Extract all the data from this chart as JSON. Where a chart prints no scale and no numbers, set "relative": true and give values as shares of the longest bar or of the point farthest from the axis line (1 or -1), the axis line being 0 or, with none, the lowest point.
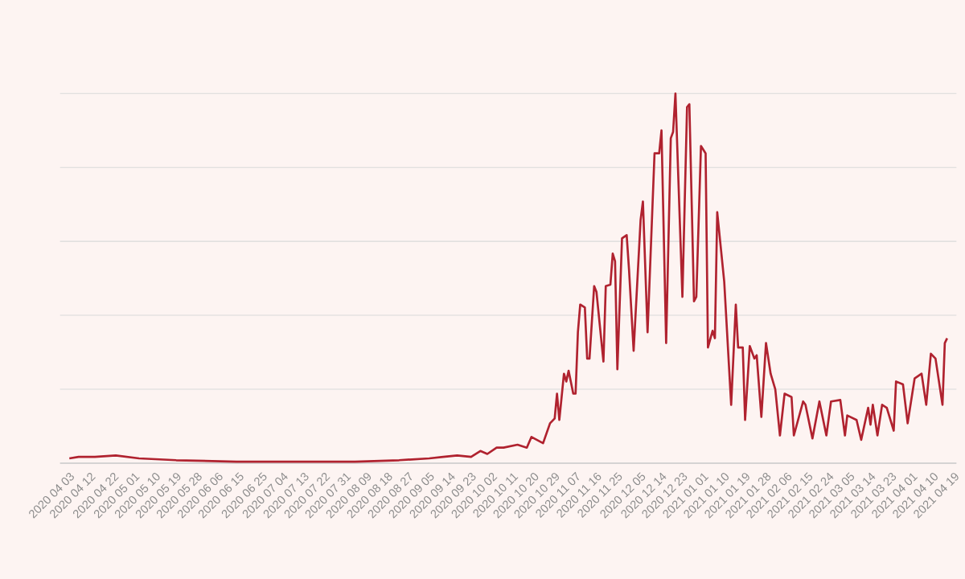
{
  "chart_data": {
    "type": "line",
    "relative": true,
    "grid": "y",
    "color": "#b0222f",
    "x": [
      "2020-04-03",
      "2020-04-07",
      "2020-04-14",
      "2020-04-23",
      "2020-05-03",
      "2020-05-19",
      "2020-06-14",
      "2020-07-09",
      "2020-08-04",
      "2020-08-23",
      "2020-09-05",
      "2020-09-11",
      "2020-09-17",
      "2020-09-23",
      "2020-09-27",
      "2020-09-30",
      "2020-10-04",
      "2020-10-07",
      "2020-10-13",
      "2020-10-17",
      "2020-10-19",
      "2020-10-24",
      "2020-10-27",
      "2020-10-29",
      "2020-10-30",
      "2020-10-31",
      "2020-11-02",
      "2020-11-03",
      "2020-11-04",
      "2020-11-06",
      "2020-11-07",
      "2020-11-08",
      "2020-11-09",
      "2020-11-11",
      "2020-11-12",
      "2020-11-13",
      "2020-11-15",
      "2020-11-16",
      "2020-11-19",
      "2020-11-20",
      "2020-11-22",
      "2020-11-23",
      "2020-11-24",
      "2020-11-25",
      "2020-11-27",
      "2020-11-29",
      "2020-11-30",
      "2020-12-02",
      "2020-12-05",
      "2020-12-06",
      "2020-12-08",
      "2020-12-11",
      "2020-12-13",
      "2020-12-14",
      "2020-12-16",
      "2020-12-18",
      "2020-12-19",
      "2020-12-20",
      "2020-12-23",
      "2020-12-25",
      "2020-12-26",
      "2020-12-28",
      "2020-12-29",
      "2020-12-31",
      "2021-01-02",
      "2021-01-03",
      "2021-01-05",
      "2021-01-06",
      "2021-01-07",
      "2021-01-10",
      "2021-01-13",
      "2021-01-15",
      "2021-01-16",
      "2021-01-18",
      "2021-01-19",
      "2021-01-21",
      "2021-01-23",
      "2021-01-24",
      "2021-01-26",
      "2021-01-28",
      "2021-01-30",
      "2021-02-01",
      "2021-02-03",
      "2021-02-05",
      "2021-02-08",
      "2021-02-09",
      "2021-02-13",
      "2021-02-14",
      "2021-02-17",
      "2021-02-20",
      "2021-02-23",
      "2021-02-25",
      "2021-03-01",
      "2021-03-03",
      "2021-03-04",
      "2021-03-08",
      "2021-03-10",
      "2021-03-13",
      "2021-03-14",
      "2021-03-15",
      "2021-03-17",
      "2021-03-19",
      "2021-03-21",
      "2021-03-24",
      "2021-03-25",
      "2021-03-28",
      "2021-03-30",
      "2021-04-02",
      "2021-04-05",
      "2021-04-07",
      "2021-04-09",
      "2021-04-11",
      "2021-04-14",
      "2021-04-15",
      "2021-04-16"
    ],
    "values": [
      0.013,
      0.017,
      0.017,
      0.021,
      0.013,
      0.008,
      0.004,
      0.004,
      0.004,
      0.008,
      0.013,
      0.017,
      0.021,
      0.017,
      0.033,
      0.025,
      0.042,
      0.042,
      0.05,
      0.042,
      0.071,
      0.054,
      0.108,
      0.121,
      0.188,
      0.117,
      0.242,
      0.221,
      0.25,
      0.188,
      0.188,
      0.354,
      0.429,
      0.421,
      0.283,
      0.283,
      0.479,
      0.463,
      0.275,
      0.479,
      0.483,
      0.567,
      0.546,
      0.254,
      0.608,
      0.617,
      0.525,
      0.304,
      0.658,
      0.708,
      0.354,
      0.838,
      0.838,
      0.9,
      0.325,
      0.879,
      0.896,
      1.0,
      0.45,
      0.963,
      0.971,
      0.438,
      0.45,
      0.858,
      0.838,
      0.313,
      0.358,
      0.338,
      0.679,
      0.492,
      0.158,
      0.429,
      0.313,
      0.313,
      0.117,
      0.317,
      0.283,
      0.292,
      0.125,
      0.325,
      0.242,
      0.2,
      0.075,
      0.188,
      0.179,
      0.075,
      0.167,
      0.158,
      0.067,
      0.167,
      0.075,
      0.167,
      0.171,
      0.075,
      0.129,
      0.117,
      0.063,
      0.15,
      0.104,
      0.158,
      0.075,
      0.158,
      0.15,
      0.088,
      0.221,
      0.213,
      0.108,
      0.229,
      0.242,
      0.158,
      0.296,
      0.283,
      0.158,
      0.325,
      0.338
    ],
    "xlim": [
      "2020-03-30",
      "2021-04-20"
    ],
    "xticks": [
      {
        "value": "2020-04-03",
        "label": "2020 04 03"
      },
      {
        "value": "2020-04-12",
        "label": "2020 04 12"
      },
      {
        "value": "2020-04-22",
        "label": "2020 04 22"
      },
      {
        "value": "2020-05-01",
        "label": "2020 05 01"
      },
      {
        "value": "2020-05-10",
        "label": "2020 05 10"
      },
      {
        "value": "2020-05-19",
        "label": "2020 05 19"
      },
      {
        "value": "2020-05-28",
        "label": "2020 05 28"
      },
      {
        "value": "2020-06-06",
        "label": "2020 06 06"
      },
      {
        "value": "2020-06-15",
        "label": "2020 06 15"
      },
      {
        "value": "2020-06-25",
        "label": "2020 06 25"
      },
      {
        "value": "2020-07-04",
        "label": "2020 07 04"
      },
      {
        "value": "2020-07-13",
        "label": "2020 07 13"
      },
      {
        "value": "2020-07-22",
        "label": "2020 07 22"
      },
      {
        "value": "2020-07-31",
        "label": "2020 07 31"
      },
      {
        "value": "2020-08-09",
        "label": "2020 08 09"
      },
      {
        "value": "2020-08-18",
        "label": "2020 08 18"
      },
      {
        "value": "2020-08-27",
        "label": "2020 08 27"
      },
      {
        "value": "2020-09-05",
        "label": "2020 09 05"
      },
      {
        "value": "2020-09-14",
        "label": "2020 09 14"
      },
      {
        "value": "2020-09-23",
        "label": "2020 09 23"
      },
      {
        "value": "2020-10-02",
        "label": "2020 10 02"
      },
      {
        "value": "2020-10-11",
        "label": "2020 10 11"
      },
      {
        "value": "2020-10-20",
        "label": "2020 10 20"
      },
      {
        "value": "2020-10-29",
        "label": "2020 10 29"
      },
      {
        "value": "2020-11-07",
        "label": "2020 11 07"
      },
      {
        "value": "2020-11-16",
        "label": "2020 11 16"
      },
      {
        "value": "2020-11-25",
        "label": "2020 11 25"
      },
      {
        "value": "2020-12-05",
        "label": "2020 12 05"
      },
      {
        "value": "2020-12-14",
        "label": "2020 12 14"
      },
      {
        "value": "2020-12-23",
        "label": "2020 12 23"
      },
      {
        "value": "2021-01-01",
        "label": "2021 01 01"
      },
      {
        "value": "2021-01-10",
        "label": "2021 01 10"
      },
      {
        "value": "2021-01-19",
        "label": "2021 01 19"
      },
      {
        "value": "2021-01-28",
        "label": "2021 01 28"
      },
      {
        "value": "2021-02-06",
        "label": "2021 02 06"
      },
      {
        "value": "2021-02-15",
        "label": "2021 02 15"
      },
      {
        "value": "2021-02-24",
        "label": "2021 02 24"
      },
      {
        "value": "2021-03-05",
        "label": "2021 03 05"
      },
      {
        "value": "2021-03-14",
        "label": "2021 03 14"
      },
      {
        "value": "2021-03-23",
        "label": "2021 03 23"
      },
      {
        "value": "2021-04-01",
        "label": "2021 04 01"
      },
      {
        "value": "2021-04-10",
        "label": "2021 04 10"
      },
      {
        "value": "2021-04-19",
        "label": "2021 04 19"
      }
    ]
  }
}
